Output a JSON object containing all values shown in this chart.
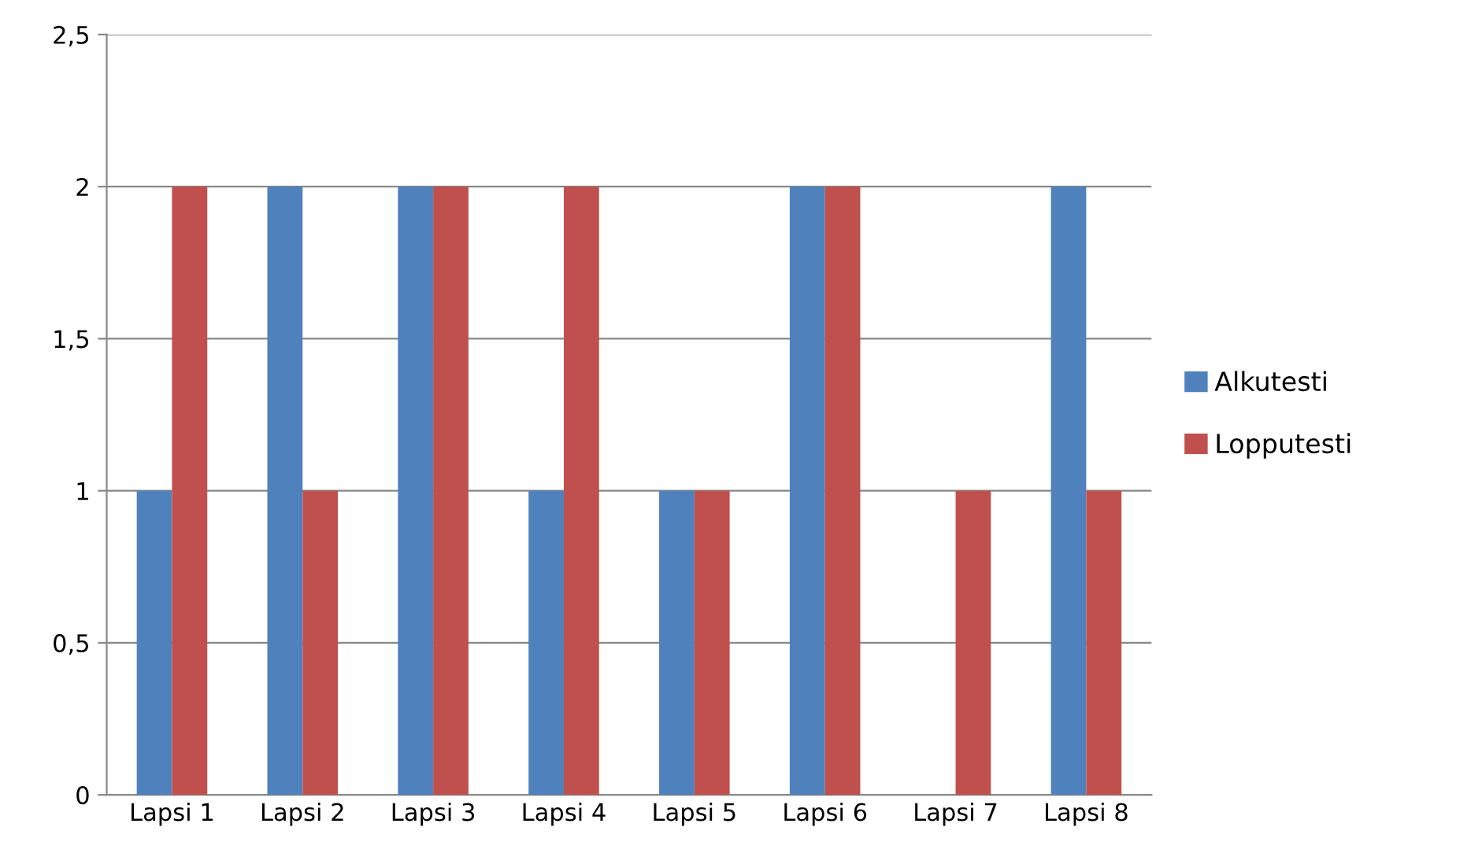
{
  "chart_data": {
    "type": "bar",
    "categories": [
      "Lapsi 1",
      "Lapsi 2",
      "Lapsi 3",
      "Lapsi 4",
      "Lapsi 5",
      "Lapsi 6",
      "Lapsi 7",
      "Lapsi 8"
    ],
    "series": [
      {
        "name": "Alkutesti",
        "color": "#4f81bd",
        "values": [
          1,
          2,
          2,
          1,
          1,
          2,
          0,
          2
        ]
      },
      {
        "name": "Lopputesti",
        "color": "#c0504d",
        "values": [
          2,
          1,
          2,
          2,
          1,
          2,
          1,
          1
        ]
      }
    ],
    "ylim": [
      0,
      2.5
    ],
    "yticks": [
      0,
      {
        "value": 0.5,
        "label": "0,5"
      },
      1,
      {
        "value": 1.5,
        "label": "1,5"
      },
      2,
      {
        "value": 2.5,
        "label": "2,5"
      }
    ],
    "grid": "y",
    "legend": "right"
  }
}
